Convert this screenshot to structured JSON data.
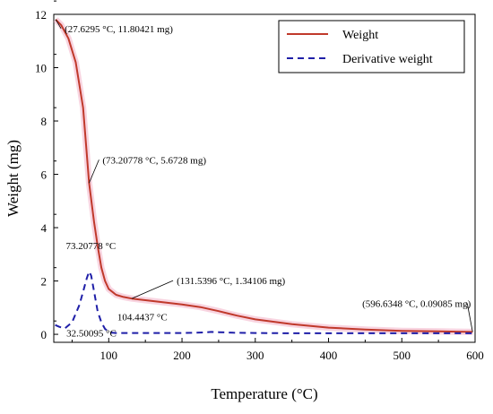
{
  "chart_data": {
    "type": "line",
    "xlabel": "Temperature (°C)",
    "ylabel": "Weight (mg)",
    "xlim": [
      25,
      600
    ],
    "ylim": [
      -0.3,
      12
    ],
    "x_ticks": [
      100,
      200,
      300,
      400,
      500,
      600
    ],
    "y_ticks": [
      0,
      2,
      4,
      6,
      8,
      10,
      12
    ],
    "legend_position": "top-right",
    "grid": false,
    "series": [
      {
        "name": "Weight",
        "color": "#c0392b",
        "dash": "solid",
        "x": [
          27.6295,
          35,
          45,
          55,
          65,
          73.2078,
          80,
          85,
          90,
          95,
          100,
          110,
          120,
          131.5396,
          150,
          175,
          200,
          225,
          250,
          275,
          300,
          350,
          400,
          450,
          500,
          550,
          596.6348
        ],
        "y": [
          11.80421,
          11.6,
          11.1,
          10.2,
          8.5,
          5.6728,
          4.2,
          3.3,
          2.5,
          2.0,
          1.7,
          1.48,
          1.4,
          1.34106,
          1.28,
          1.2,
          1.12,
          1.02,
          0.87,
          0.7,
          0.56,
          0.38,
          0.25,
          0.18,
          0.13,
          0.11,
          0.09085
        ]
      },
      {
        "name": "Derivative weight",
        "color": "#1f1fa8",
        "dash": "dashed",
        "x": [
          27,
          32.50095,
          40,
          50,
          60,
          65,
          70,
          73.20778,
          76,
          80,
          85,
          90,
          95,
          100,
          104.4437,
          110,
          150,
          200,
          230,
          240,
          250,
          270,
          300,
          350,
          400,
          450,
          500,
          550,
          600
        ],
        "y": [
          0.35,
          0.28,
          0.22,
          0.45,
          1.1,
          1.6,
          2.1,
          2.35,
          2.2,
          1.6,
          0.85,
          0.45,
          0.2,
          0.1,
          0.06,
          0.05,
          0.05,
          0.05,
          0.07,
          0.09,
          0.08,
          0.06,
          0.05,
          0.04,
          0.04,
          0.04,
          0.04,
          0.04,
          0.04
        ]
      }
    ],
    "annotations": [
      {
        "text": "(27.6295 °C, 11.80421 mg)",
        "x": 27.6295,
        "y": 11.80421
      },
      {
        "text": "(73.20778 °C, 5.6728 mg)",
        "x": 73.20778,
        "y": 5.6728
      },
      {
        "text": "73.20778 °C",
        "x": 73.20778,
        "y": 2.35
      },
      {
        "text": "(131.5396 °C, 1.34106 mg)",
        "x": 131.5396,
        "y": 1.34106
      },
      {
        "text": "104.4437 °C",
        "x": 104.4437,
        "y": 0.06
      },
      {
        "text": "32.50095 °C",
        "x": 32.50095,
        "y": 0.28
      },
      {
        "text": "(596.6348 °C, 0.09085 mg)",
        "x": 596.6348,
        "y": 0.09085
      }
    ]
  }
}
